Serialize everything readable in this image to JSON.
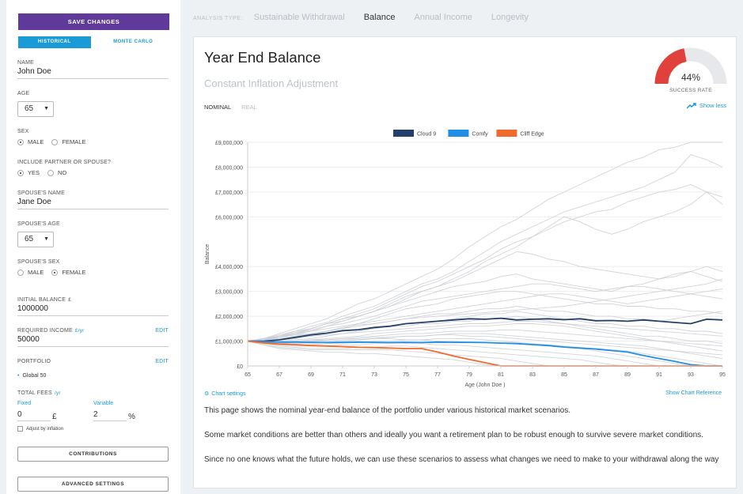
{
  "sidebar": {
    "save_label": "SAVE CHANGES",
    "tabs": [
      {
        "label": "HISTORICAL",
        "active": true
      },
      {
        "label": "MONTE CARLO",
        "active": false
      }
    ],
    "name_label": "NAME",
    "name_value": "John Doe",
    "age_label": "AGE",
    "age_value": "65",
    "sex_label": "SEX",
    "sex_options": [
      "MALE",
      "FEMALE"
    ],
    "sex_selected": "MALE",
    "partner_label": "INCLUDE PARTNER OR SPOUSE?",
    "partner_options": [
      "YES",
      "NO"
    ],
    "partner_selected": "YES",
    "spouse_name_label": "SPOUSE'S NAME",
    "spouse_name_value": "Jane Doe",
    "spouse_age_label": "SPOUSE'S AGE",
    "spouse_age_value": "65",
    "spouse_sex_label": "SPOUSE'S SEX",
    "spouse_sex_options": [
      "MALE",
      "FEMALE"
    ],
    "spouse_sex_selected": "FEMALE",
    "initial_balance_label": "INITIAL BALANCE",
    "initial_balance_unit": "£",
    "initial_balance_value": "1000000",
    "required_income_label": "REQUIRED INCOME",
    "required_income_unit": "£/yr",
    "required_income_value": "50000",
    "required_income_edit": "EDIT",
    "portfolio_label": "PORTFOLIO",
    "portfolio_edit": "EDIT",
    "portfolio_value": "Global 50",
    "fees_label": "TOTAL FEES",
    "fees_unit": "/yr",
    "fixed_label": "Fixed",
    "fixed_value": "0",
    "fixed_unit": "£",
    "variable_label": "Variable",
    "variable_value": "2",
    "variable_unit": "%",
    "adjust_label": "Adjust by inflation",
    "contributions_label": "CONTRIBUTIONS",
    "advanced_label": "ADVANCED SETTINGS"
  },
  "topnav": {
    "label": "ANALYSIS TYPE:",
    "items": [
      {
        "label": "Sustainable Withdrawal",
        "active": false
      },
      {
        "label": "Balance",
        "active": true
      },
      {
        "label": "Annual Income",
        "active": false
      },
      {
        "label": "Longevity",
        "active": false
      }
    ]
  },
  "main": {
    "title": "Year End Balance",
    "subtitle": "Constant Inflation Adjustment",
    "view_tabs": [
      {
        "label": "NOMINAL",
        "active": true
      },
      {
        "label": "REAL",
        "active": false
      }
    ],
    "gauge_value": "44%",
    "gauge_fraction": 0.44,
    "gauge_label": "SUCCESS RATE",
    "show_less": "Show less",
    "chart_settings": "Chart settings",
    "chart_reference": "Show Chart Reference",
    "paragraphs": [
      "This page shows the nominal year-end balance of the portfolio under various historical market scenarios.",
      "Some market conditions are better than others and ideally you want a retirement plan to be robust enough to survive severe market conditions.",
      "Since no one knows what the future holds, we can use these scenarios to assess what changes we need to make to your withdrawal along the way"
    ]
  },
  "colors": {
    "accent": "#1a9bd7",
    "save_button": "#5f3a9a",
    "gauge_fill": "#e0413a",
    "cloud9": "#243f6b",
    "comfy": "#1f8ee6",
    "cliff": "#f06a2a"
  },
  "chart_data": {
    "type": "line",
    "xlabel": "Age (John Doe )",
    "ylabel": "Balance",
    "x": [
      65,
      66,
      67,
      68,
      69,
      70,
      71,
      72,
      73,
      74,
      75,
      76,
      77,
      78,
      79,
      80,
      81,
      82,
      83,
      84,
      85,
      86,
      87,
      88,
      89,
      90,
      91,
      92,
      93,
      94,
      95
    ],
    "x_ticks": [
      "65",
      "67",
      "69",
      "71",
      "73",
      "75",
      "77",
      "79",
      "81",
      "83",
      "85",
      "87",
      "89",
      "91",
      "93",
      "95"
    ],
    "y_ticks": [
      {
        "v": 0,
        "label": "£0"
      },
      {
        "v": 1000000,
        "label": "£1,000,000"
      },
      {
        "v": 2000000,
        "label": "£2,000,000"
      },
      {
        "v": 3000000,
        "label": "£3,000,000"
      },
      {
        "v": 4000000,
        "label": "£4,000,000"
      },
      {
        "v": 6000000,
        "label": "£6,000,000"
      },
      {
        "v": 7000000,
        "label": "£7,000,000"
      },
      {
        "v": 8000000,
        "label": "£8,000,000"
      },
      {
        "v": 9000000,
        "label": "£9,000,000"
      }
    ],
    "ylim": [
      0,
      9000000
    ],
    "legend_position": "top-center",
    "series": [
      {
        "name": "Cloud 9",
        "color": "#243f6b",
        "values": [
          1000000,
          1000000,
          1050000,
          1150000,
          1250000,
          1320000,
          1420000,
          1460000,
          1550000,
          1600000,
          1700000,
          1750000,
          1800000,
          1850000,
          1900000,
          1880000,
          1920000,
          1850000,
          1880000,
          1900000,
          1860000,
          1900000,
          1820000,
          1830000,
          1800000,
          1850000,
          1800000,
          1750000,
          1700000,
          1880000,
          1850000
        ]
      },
      {
        "name": "Comfy",
        "color": "#1f8ee6",
        "values": [
          1000000,
          980000,
          960000,
          960000,
          950000,
          940000,
          950000,
          960000,
          950000,
          940000,
          950000,
          940000,
          960000,
          950000,
          950000,
          940000,
          920000,
          900000,
          860000,
          820000,
          760000,
          720000,
          680000,
          620000,
          560000,
          420000,
          300000,
          180000,
          50000,
          0,
          0
        ]
      },
      {
        "name": "Cliff Edge",
        "color": "#f06a2a",
        "values": [
          1000000,
          930000,
          880000,
          860000,
          820000,
          800000,
          780000,
          750000,
          740000,
          720000,
          700000,
          700000,
          560000,
          400000,
          260000,
          130000,
          0,
          0,
          0,
          0,
          0,
          0,
          0,
          0,
          0,
          0,
          0,
          0,
          0,
          0,
          0
        ]
      }
    ],
    "scenarios": [
      [
        1000000,
        1100000,
        1300000,
        1500000,
        1700000,
        1900000,
        2200000,
        2500000,
        2700000,
        3000000,
        3300000,
        3600000,
        3900000,
        4300000,
        4800000,
        5200000,
        5600000,
        5900000,
        6300000,
        6700000,
        7000000,
        7300000,
        7600000,
        7900000,
        8200000,
        8400000,
        8700000,
        8800000,
        9000000,
        9000000,
        9000000
      ],
      [
        1000000,
        1100000,
        1250000,
        1400000,
        1600000,
        1750000,
        2000000,
        2200000,
        2400000,
        2700000,
        3000000,
        3300000,
        3500000,
        3800000,
        4200000,
        4600000,
        5000000,
        5300000,
        5600000,
        5900000,
        6200000,
        6400000,
        6600000,
        6800000,
        7000000,
        7200000,
        7500000,
        7800000,
        8500000,
        8300000,
        8000000
      ],
      [
        1000000,
        1050000,
        1200000,
        1400000,
        1500000,
        1700000,
        1900000,
        2100000,
        2300000,
        2600000,
        2900000,
        3200000,
        3400000,
        3700000,
        4000000,
        4300000,
        4700000,
        5000000,
        5200000,
        5500000,
        5800000,
        6000000,
        6200000,
        6300000,
        6600000,
        6800000,
        7000000,
        7100000,
        7300000,
        7000000,
        6500000
      ],
      [
        1000000,
        1000000,
        1200000,
        1300000,
        1500000,
        1700000,
        1800000,
        2000000,
        2200000,
        2500000,
        2800000,
        3000000,
        3200000,
        3500000,
        3800000,
        4200000,
        4500000,
        4800000,
        5200000,
        5600000,
        6000000,
        5800000,
        5500000,
        5300000,
        5500000,
        5800000,
        6000000,
        6200000,
        6500000,
        7000000,
        6800000
      ],
      [
        1000000,
        1100000,
        1150000,
        1250000,
        1400000,
        1600000,
        1800000,
        2000000,
        2200000,
        2400000,
        2700000,
        3000000,
        3200000,
        3400000,
        3700000,
        4000000,
        4300000,
        4600000,
        4500000,
        4300000,
        4200000,
        4000000,
        3900000,
        3800000,
        3700000,
        3600000,
        3500000,
        3600000,
        3800000,
        4000000,
        3800000
      ],
      [
        1000000,
        1100000,
        1200000,
        1350000,
        1500000,
        1700000,
        1900000,
        2000000,
        2200000,
        2400000,
        2600000,
        2800000,
        3000000,
        3200000,
        3300000,
        3400000,
        3600000,
        3700000,
        3500000,
        3400000,
        3300000,
        3200000,
        3100000,
        3000000,
        3200000,
        3300000,
        3500000,
        3700000,
        3800000,
        3600000,
        3400000
      ],
      [
        1000000,
        1050000,
        1150000,
        1300000,
        1450000,
        1600000,
        1700000,
        1850000,
        2000000,
        2200000,
        2400000,
        2600000,
        2700000,
        2800000,
        2900000,
        3000000,
        3100000,
        3200000,
        3300000,
        3300000,
        3200000,
        3100000,
        3000000,
        3100000,
        3200000,
        3200000,
        3100000,
        3000000,
        2900000,
        2800000,
        2700000
      ],
      [
        1000000,
        1000000,
        1050000,
        1100000,
        1250000,
        1400000,
        1500000,
        1700000,
        1900000,
        2100000,
        2300000,
        2400000,
        2500000,
        2700000,
        2800000,
        2900000,
        3000000,
        3000000,
        2900000,
        2800000,
        2700000,
        2600000,
        2500000,
        2500000,
        2400000,
        2400000,
        2300000,
        2300000,
        2200000,
        2200000,
        2100000
      ],
      [
        1000000,
        1100000,
        1200000,
        1300000,
        1400000,
        1500000,
        1600000,
        1700000,
        1800000,
        1900000,
        2000000,
        2100000,
        2200000,
        2300000,
        2400000,
        2500000,
        2600000,
        2700000,
        2800000,
        2900000,
        2900000,
        2800000,
        2700000,
        2600000,
        2500000,
        2600000,
        2700000,
        2800000,
        2900000,
        3000000,
        3100000
      ],
      [
        1000000,
        1050000,
        1100000,
        1200000,
        1300000,
        1400000,
        1500000,
        1600000,
        1700000,
        1800000,
        1900000,
        2000000,
        2100000,
        2100000,
        2200000,
        2300000,
        2300000,
        2400000,
        2300000,
        2200000,
        2200000,
        2100000,
        2000000,
        2000000,
        1900000,
        1900000,
        1800000,
        1900000,
        2000000,
        2100000,
        2200000
      ],
      [
        1000000,
        1000000,
        1050000,
        1100000,
        1200000,
        1300000,
        1400000,
        1450000,
        1500000,
        1600000,
        1700000,
        1750000,
        1800000,
        1900000,
        2000000,
        2100000,
        2100000,
        2200000,
        2100000,
        2000000,
        1900000,
        1800000,
        1700000,
        1700000,
        1600000,
        1600000,
        1500000,
        1500000,
        1400000,
        1400000,
        1300000
      ],
      [
        1000000,
        950000,
        1000000,
        1050000,
        1100000,
        1200000,
        1300000,
        1400000,
        1500000,
        1600000,
        1600000,
        1700000,
        1700000,
        1800000,
        1800000,
        1900000,
        1900000,
        2000000,
        1900000,
        1800000,
        1700000,
        1600000,
        1500000,
        1400000,
        1300000,
        1200000,
        1200000,
        1100000,
        1000000,
        1000000,
        900000
      ],
      [
        1000000,
        1000000,
        950000,
        1000000,
        1050000,
        1100000,
        1150000,
        1200000,
        1300000,
        1350000,
        1400000,
        1450000,
        1500000,
        1550000,
        1600000,
        1600000,
        1650000,
        1700000,
        1700000,
        1650000,
        1600000,
        1500000,
        1400000,
        1300000,
        1200000,
        1100000,
        1000000,
        900000,
        800000,
        700000,
        600000
      ],
      [
        1000000,
        950000,
        900000,
        950000,
        1000000,
        1050000,
        1100000,
        1150000,
        1200000,
        1250000,
        1300000,
        1300000,
        1350000,
        1400000,
        1400000,
        1400000,
        1450000,
        1450000,
        1400000,
        1350000,
        1300000,
        1250000,
        1200000,
        1150000,
        1100000,
        1050000,
        1000000,
        950000,
        900000,
        850000,
        800000
      ],
      [
        1000000,
        950000,
        900000,
        900000,
        900000,
        950000,
        1000000,
        1050000,
        1100000,
        1150000,
        1200000,
        1200000,
        1250000,
        1300000,
        1300000,
        1300000,
        1250000,
        1200000,
        1150000,
        1100000,
        1050000,
        1000000,
        950000,
        900000,
        850000,
        800000,
        700000,
        600000,
        500000,
        400000,
        300000
      ],
      [
        1000000,
        900000,
        850000,
        850000,
        850000,
        900000,
        900000,
        950000,
        1000000,
        1000000,
        1050000,
        1050000,
        1100000,
        1100000,
        1100000,
        1050000,
        1000000,
        950000,
        900000,
        850000,
        800000,
        750000,
        700000,
        650000,
        600000,
        500000,
        400000,
        300000,
        200000,
        100000,
        0
      ],
      [
        1000000,
        900000,
        850000,
        800000,
        800000,
        800000,
        850000,
        850000,
        900000,
        900000,
        900000,
        900000,
        850000,
        850000,
        800000,
        750000,
        700000,
        650000,
        600000,
        550000,
        500000,
        450000,
        400000,
        300000,
        200000,
        100000,
        0,
        0,
        0,
        0,
        0
      ],
      [
        1000000,
        900000,
        800000,
        750000,
        700000,
        700000,
        700000,
        750000,
        750000,
        800000,
        800000,
        750000,
        700000,
        650000,
        600000,
        550000,
        500000,
        450000,
        400000,
        350000,
        300000,
        250000,
        150000,
        50000,
        0,
        0,
        0,
        0,
        0,
        0,
        0
      ],
      [
        1000000,
        850000,
        750000,
        700000,
        650000,
        650000,
        650000,
        650000,
        650000,
        650000,
        600000,
        550000,
        500000,
        450000,
        400000,
        350000,
        300000,
        200000,
        100000,
        0,
        0,
        0,
        0,
        0,
        0,
        0,
        0,
        0,
        0,
        0,
        0
      ],
      [
        1000000,
        850000,
        700000,
        650000,
        600000,
        550000,
        550000,
        500000,
        500000,
        450000,
        400000,
        350000,
        300000,
        250000,
        150000,
        50000,
        0,
        0,
        0,
        0,
        0,
        0,
        0,
        0,
        0,
        0,
        0,
        0,
        0,
        0,
        0
      ],
      [
        1000000,
        1050000,
        1150000,
        1250000,
        1300000,
        1400000,
        1550000,
        1650000,
        1700000,
        1800000,
        1900000,
        1950000,
        2000000,
        2050000,
        2100000,
        2150000,
        2200000,
        2250000,
        2300000,
        2350000,
        2400000,
        2500000,
        2600000,
        2700000,
        2800000,
        2900000,
        3000000,
        3100000,
        3200000,
        3300000,
        3500000
      ],
      [
        1000000,
        1000000,
        1100000,
        1150000,
        1200000,
        1250000,
        1300000,
        1350000,
        1400000,
        1450000,
        1500000,
        1550000,
        1600000,
        1650000,
        1700000,
        1700000,
        1750000,
        1800000,
        1800000,
        1750000,
        1700000,
        1650000,
        1600000,
        1550000,
        1500000,
        1450000,
        1400000,
        1350000,
        1300000,
        1250000,
        1200000
      ],
      [
        1000000,
        950000,
        950000,
        1000000,
        1050000,
        1050000,
        1100000,
        1100000,
        1150000,
        1150000,
        1200000,
        1200000,
        1250000,
        1250000,
        1200000,
        1200000,
        1150000,
        1100000,
        1050000,
        1000000,
        950000,
        900000,
        850000,
        800000,
        750000,
        700000,
        650000,
        600000,
        550000,
        500000,
        450000
      ],
      [
        1000000,
        950000,
        900000,
        950000,
        1000000,
        1000000,
        1050000,
        1050000,
        1100000,
        1100000,
        1050000,
        1050000,
        1000000,
        1000000,
        950000,
        950000,
        900000,
        900000,
        850000,
        800000,
        750000,
        700000,
        600000,
        500000,
        400000,
        300000,
        200000,
        100000,
        0,
        0,
        0
      ]
    ]
  }
}
